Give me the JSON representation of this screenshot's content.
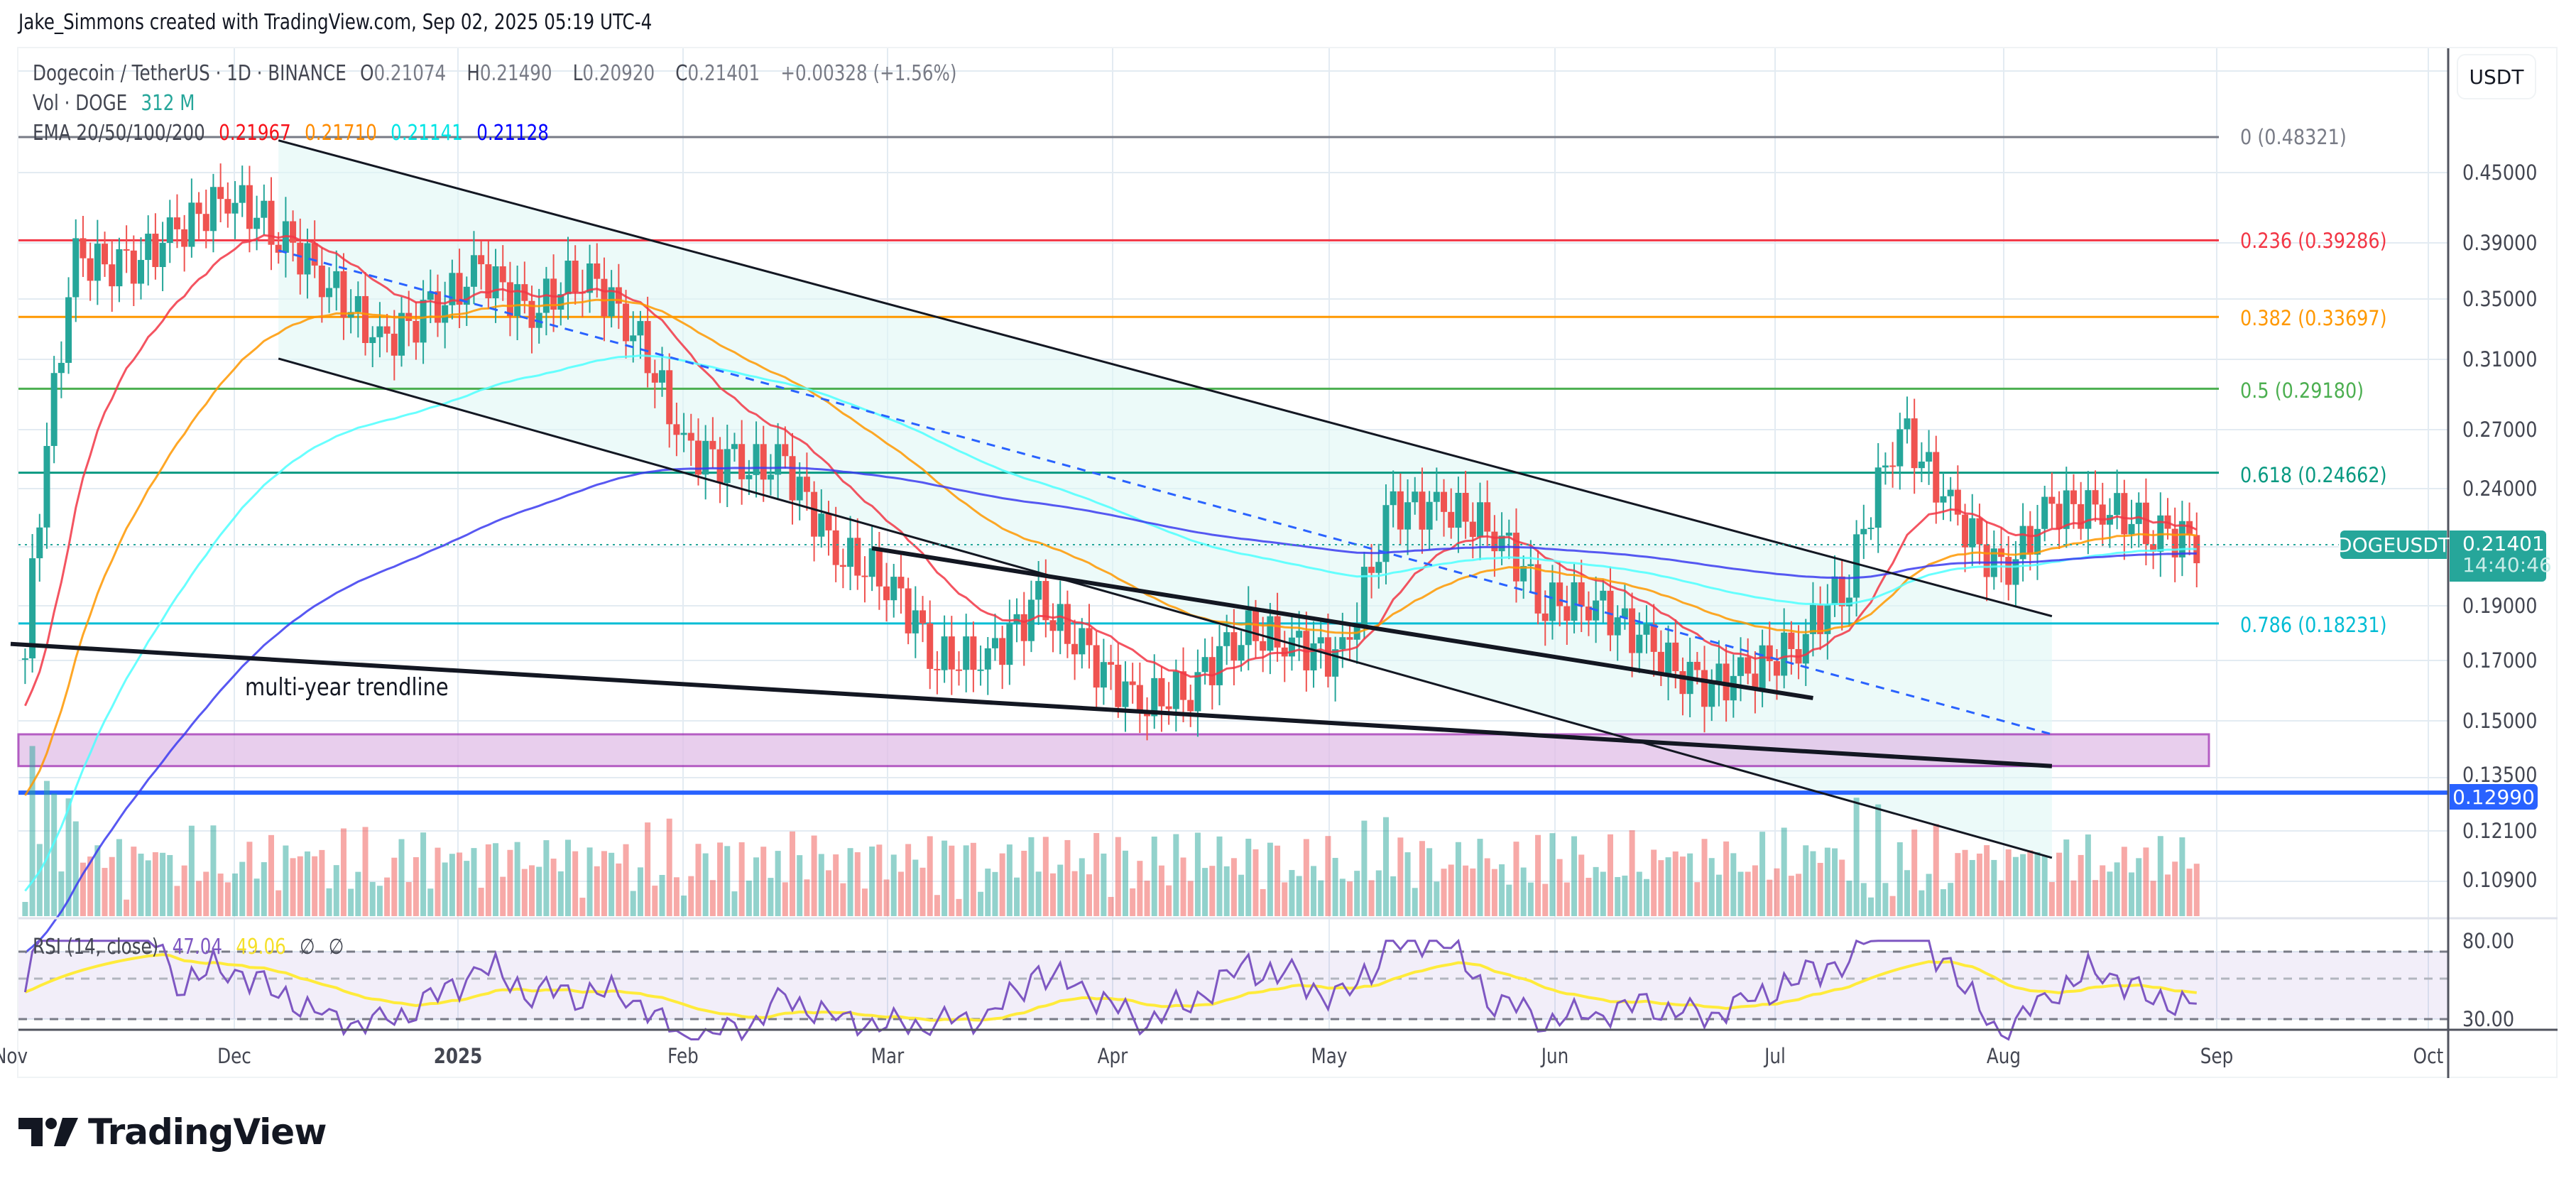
{
  "header": {
    "credit": "Jake_Simmons created with TradingView.com, Sep 02, 2025 05:19 UTC-4"
  },
  "legend": {
    "symbol": "Dogecoin / TetherUS · 1D · BINANCE",
    "open_label": "O",
    "open": "0.21074",
    "high_label": "H",
    "high": "0.21490",
    "low_label": "L",
    "low": "0.20920",
    "close_label": "C",
    "close": "0.21401",
    "change": "+0.00328 (+1.56%)",
    "volume_label": "Vol · DOGE",
    "volume": "312 M",
    "ema_label": "EMA 20/50/100/200",
    "ema_values": [
      "0.21967",
      "0.21710",
      "0.21141",
      "0.21128"
    ],
    "ema_colors": [
      "#f7131b",
      "#ff8c00",
      "#00ffff",
      "#0000ff"
    ],
    "rsi_label": "RSI (14, close)",
    "rsi_value": "47.04",
    "rsi_ma_value": "49.06",
    "rsi_extra": [
      "∅",
      "∅"
    ]
  },
  "price_axis": {
    "currency_button": "USDT",
    "ticks": [
      "0.45000",
      "0.39000",
      "0.35000",
      "0.31000",
      "0.27000",
      "0.24000",
      "0.19000",
      "0.17000",
      "0.15000",
      "0.13500",
      "0.12100",
      "0.10900"
    ],
    "current_symbol": "DOGEUSDT",
    "current_price": "0.21401",
    "countdown": "14:40:46",
    "support_price": "0.12990",
    "rsi_ticks": [
      "80.00",
      "30.00"
    ]
  },
  "fib_levels": [
    {
      "label": "0 (0.48321)",
      "color": "#787b86"
    },
    {
      "label": "0.236 (0.39286)",
      "color": "#f23645"
    },
    {
      "label": "0.382 (0.33697)",
      "color": "#ff9800"
    },
    {
      "label": "0.5 (0.29180)",
      "color": "#4caf50"
    },
    {
      "label": "0.618 (0.24662)",
      "color": "#089981"
    },
    {
      "label": "0.786 (0.18231)",
      "color": "#00bcd4"
    }
  ],
  "time_axis": {
    "labels": [
      "Nov",
      "Dec",
      "2025",
      "Feb",
      "Mar",
      "Apr",
      "May",
      "Jun",
      "Jul",
      "Aug",
      "Sep",
      "Oct"
    ]
  },
  "annotations": {
    "trendline_label": "multi-year trendline"
  },
  "colors": {
    "up": "#26a69a",
    "down": "#ef5350",
    "support_line": "#2962ff",
    "zone_fill": "#e1bee7",
    "zone_border": "#9c27b0",
    "channel_fill": "#e0f7f5",
    "rsi": "#7e57c2",
    "rsi_ma": "#ffeb3b"
  },
  "footer": {
    "brand": "TradingView"
  },
  "chart_data": {
    "type": "candlestick",
    "title": "Dogecoin / TetherUS · 1D · BINANCE",
    "scale": "log",
    "ylim": [
      0.105,
      0.5
    ],
    "x_range": [
      "2024-11-01",
      "2025-10-01"
    ],
    "x_ticks": [
      "Nov",
      "Dec",
      "2025",
      "Feb",
      "Mar",
      "Apr",
      "May",
      "Jun",
      "Jul",
      "Aug",
      "Sep",
      "Oct"
    ],
    "y_ticks": [
      0.45,
      0.39,
      0.35,
      0.31,
      0.27,
      0.24,
      0.19,
      0.17,
      0.15,
      0.135,
      0.121,
      0.109
    ],
    "last_ohlc": {
      "open": 0.21074,
      "high": 0.2149,
      "low": 0.2092,
      "close": 0.21401,
      "change": 0.00328,
      "change_pct": 1.56
    },
    "approx_weekly_closes": [
      {
        "date": "2024-11-03",
        "close": 0.17
      },
      {
        "date": "2024-11-10",
        "close": 0.38
      },
      {
        "date": "2024-11-17",
        "close": 0.37
      },
      {
        "date": "2024-11-24",
        "close": 0.4
      },
      {
        "date": "2024-12-01",
        "close": 0.43
      },
      {
        "date": "2024-12-08",
        "close": 0.4
      },
      {
        "date": "2024-12-15",
        "close": 0.36
      },
      {
        "date": "2024-12-22",
        "close": 0.32
      },
      {
        "date": "2024-12-29",
        "close": 0.34
      },
      {
        "date": "2025-01-05",
        "close": 0.37
      },
      {
        "date": "2025-01-12",
        "close": 0.34
      },
      {
        "date": "2025-01-19",
        "close": 0.37
      },
      {
        "date": "2025-01-26",
        "close": 0.33
      },
      {
        "date": "2025-02-02",
        "close": 0.26
      },
      {
        "date": "2025-02-09",
        "close": 0.25
      },
      {
        "date": "2025-02-16",
        "close": 0.25
      },
      {
        "date": "2025-02-23",
        "close": 0.21
      },
      {
        "date": "2025-03-02",
        "close": 0.2
      },
      {
        "date": "2025-03-09",
        "close": 0.17
      },
      {
        "date": "2025-03-16",
        "close": 0.17
      },
      {
        "date": "2025-03-23",
        "close": 0.19
      },
      {
        "date": "2025-03-30",
        "close": 0.17
      },
      {
        "date": "2025-04-06",
        "close": 0.155
      },
      {
        "date": "2025-04-13",
        "close": 0.16
      },
      {
        "date": "2025-04-20",
        "close": 0.18
      },
      {
        "date": "2025-04-27",
        "close": 0.175
      },
      {
        "date": "2025-05-04",
        "close": 0.17
      },
      {
        "date": "2025-05-11",
        "close": 0.23
      },
      {
        "date": "2025-05-18",
        "close": 0.23
      },
      {
        "date": "2025-05-25",
        "close": 0.22
      },
      {
        "date": "2025-06-01",
        "close": 0.19
      },
      {
        "date": "2025-06-08",
        "close": 0.19
      },
      {
        "date": "2025-06-15",
        "close": 0.175
      },
      {
        "date": "2025-06-22",
        "close": 0.16
      },
      {
        "date": "2025-06-29",
        "close": 0.165
      },
      {
        "date": "2025-07-06",
        "close": 0.175
      },
      {
        "date": "2025-07-13",
        "close": 0.2
      },
      {
        "date": "2025-07-20",
        "close": 0.27
      },
      {
        "date": "2025-07-27",
        "close": 0.23
      },
      {
        "date": "2025-08-03",
        "close": 0.2
      },
      {
        "date": "2025-08-10",
        "close": 0.23
      },
      {
        "date": "2025-08-17",
        "close": 0.23
      },
      {
        "date": "2025-08-24",
        "close": 0.22
      },
      {
        "date": "2025-08-31",
        "close": 0.214
      }
    ],
    "series": [
      {
        "name": "EMA 20",
        "last": 0.21967,
        "color": "#f7131b"
      },
      {
        "name": "EMA 50",
        "last": 0.2171,
        "color": "#ff8c00"
      },
      {
        "name": "EMA 100",
        "last": 0.21141,
        "color": "#00ffff"
      },
      {
        "name": "EMA 200",
        "last": 0.21128,
        "color": "#0000ff"
      },
      {
        "name": "Volume",
        "last": "312 M"
      },
      {
        "name": "RSI (14, close)",
        "last": 47.04,
        "ma": 49.06,
        "bands": [
          30,
          80
        ]
      }
    ],
    "fibonacci": [
      {
        "level": 0,
        "price": 0.48321
      },
      {
        "level": 0.236,
        "price": 0.39286
      },
      {
        "level": 0.382,
        "price": 0.33697
      },
      {
        "level": 0.5,
        "price": 0.2918
      },
      {
        "level": 0.618,
        "price": 0.24662
      },
      {
        "level": 0.786,
        "price": 0.18231
      }
    ],
    "horizontal_lines": [
      {
        "price": 0.1299,
        "color": "#2962ff",
        "label": "support"
      }
    ],
    "zones": [
      {
        "from": 0.137,
        "to": 0.146,
        "color": "#e1bee7"
      }
    ],
    "trendlines": [
      {
        "name": "multi-year trendline",
        "from": [
          "2024-11-01",
          0.175
        ],
        "to": [
          "2025-08-10",
          0.137
        ]
      },
      {
        "name": "descending channel upper",
        "from": [
          "2024-12-08",
          0.48
        ],
        "to": [
          "2025-08-10",
          0.185
        ]
      },
      {
        "name": "descending channel lower",
        "from": [
          "2024-12-08",
          0.31
        ],
        "to": [
          "2025-08-10",
          0.114
        ]
      },
      {
        "name": "channel midline (dashed)",
        "from": [
          "2024-12-08",
          0.385
        ],
        "to": [
          "2025-08-10",
          0.146
        ]
      },
      {
        "name": "inner support line",
        "from": [
          "2025-02-28",
          0.212
        ],
        "to": [
          "2025-07-08",
          0.157
        ]
      }
    ],
    "legend_position": "top-left",
    "grid": true
  }
}
